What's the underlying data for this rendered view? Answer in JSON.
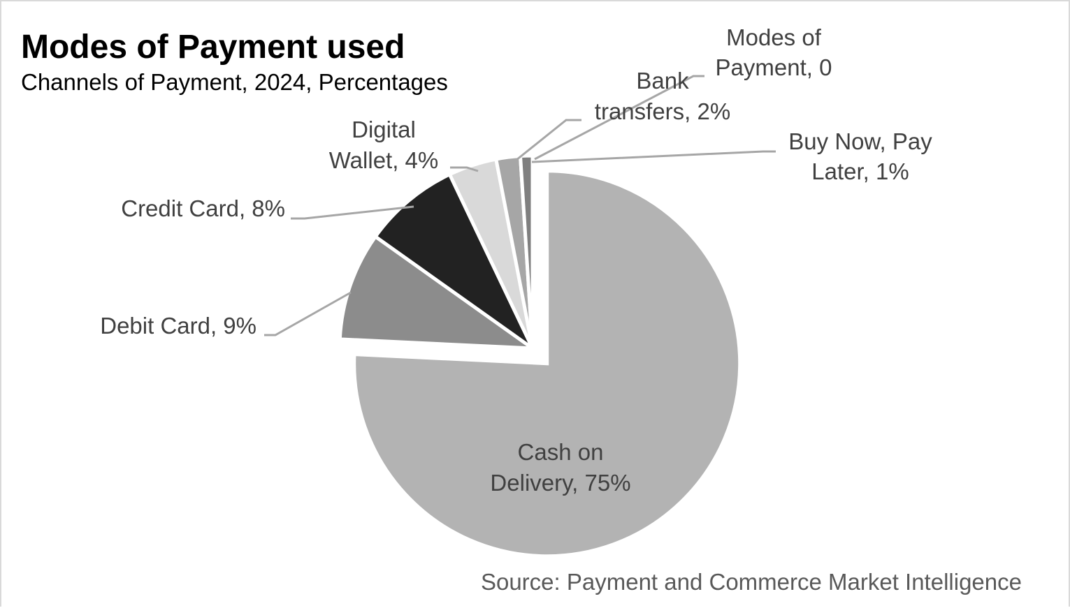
{
  "chart_data": {
    "type": "pie",
    "title": "Modes of Payment used",
    "subtitle": "Channels of Payment, 2024, Percentages",
    "source": "Source: Payment and Commerce Market Intelligence",
    "slices": [
      {
        "name": "Cash on Delivery",
        "value": 75,
        "label_lines": [
          "Cash on",
          "Delivery, 75%"
        ],
        "color": "#b3b3b3",
        "exploded": true
      },
      {
        "name": "Debit Card",
        "value": 9,
        "label_lines": [
          "Debit Card, 9%"
        ],
        "color": "#8c8c8c"
      },
      {
        "name": "Credit Card",
        "value": 8,
        "label_lines": [
          "Credit Card, 8%"
        ],
        "color": "#222222"
      },
      {
        "name": "Digital Wallet",
        "value": 4,
        "label_lines": [
          "Digital",
          "Wallet, 4%"
        ],
        "color": "#d9d9d9"
      },
      {
        "name": "Bank transfers",
        "value": 2,
        "label_lines": [
          "Bank",
          "transfers, 2%"
        ],
        "color": "#a6a6a6"
      },
      {
        "name": "Buy Now, Pay Later",
        "value": 1,
        "label_lines": [
          "Buy Now, Pay",
          "Later, 1%"
        ],
        "color": "#7f7f7f"
      },
      {
        "name": "Modes of Payment",
        "value": 0,
        "label_lines": [
          "Modes of",
          "Payment, 0"
        ],
        "color": "#595959"
      }
    ],
    "leader_line_color": "#a6a6a6",
    "slice_border_color": "#ffffff"
  }
}
